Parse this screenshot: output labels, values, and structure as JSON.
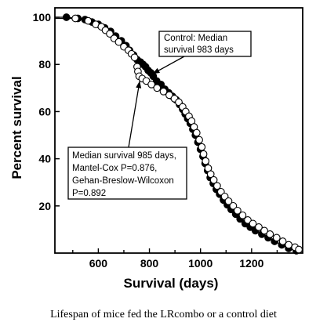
{
  "chart_data": {
    "type": "scatter",
    "xlabel": "Survival (days)",
    "ylabel": "Percent survival",
    "xlim": [
      430,
      1400
    ],
    "ylim": [
      0,
      104
    ],
    "xticks": [
      600,
      800,
      1000,
      1200
    ],
    "yticks": [
      20,
      40,
      60,
      80,
      100
    ],
    "grid": false,
    "series": [
      {
        "name": "Control",
        "marker": "filled-circle",
        "color": "#000000",
        "points": [
          [
            475,
            100
          ],
          [
            520,
            99.5
          ],
          [
            548,
            99
          ],
          [
            575,
            98
          ],
          [
            600,
            97
          ],
          [
            625,
            95.5
          ],
          [
            648,
            94
          ],
          [
            668,
            92
          ],
          [
            690,
            90
          ],
          [
            708,
            88
          ],
          [
            722,
            86
          ],
          [
            738,
            84
          ],
          [
            752,
            82
          ],
          [
            765,
            81
          ],
          [
            775,
            80
          ],
          [
            785,
            79
          ],
          [
            795,
            77.5
          ],
          [
            805,
            76.5
          ],
          [
            815,
            75
          ],
          [
            828,
            73
          ],
          [
            845,
            71.5
          ],
          [
            860,
            69.5
          ],
          [
            875,
            68
          ],
          [
            890,
            66.5
          ],
          [
            905,
            65
          ],
          [
            918,
            63
          ],
          [
            930,
            61
          ],
          [
            940,
            59
          ],
          [
            950,
            57
          ],
          [
            960,
            55
          ],
          [
            970,
            52.5
          ],
          [
            980,
            50
          ],
          [
            990,
            47
          ],
          [
            1000,
            44
          ],
          [
            1010,
            41
          ],
          [
            1018,
            38
          ],
          [
            1028,
            35
          ],
          [
            1038,
            32
          ],
          [
            1050,
            29.5
          ],
          [
            1062,
            27
          ],
          [
            1075,
            25
          ],
          [
            1090,
            22.5
          ],
          [
            1105,
            20.5
          ],
          [
            1120,
            18.5
          ],
          [
            1138,
            16.5
          ],
          [
            1155,
            14.5
          ],
          [
            1175,
            12.5
          ],
          [
            1195,
            11
          ],
          [
            1215,
            9.5
          ],
          [
            1240,
            8
          ],
          [
            1265,
            6.5
          ],
          [
            1290,
            5
          ],
          [
            1318,
            3.5
          ],
          [
            1345,
            2
          ],
          [
            1375,
            1
          ]
        ]
      },
      {
        "name": "LRcombo",
        "marker": "open-circle",
        "color": "#000000",
        "points": [
          [
            510,
            99.5
          ],
          [
            560,
            98.5
          ],
          [
            590,
            97
          ],
          [
            612,
            96
          ],
          [
            628,
            94.5
          ],
          [
            645,
            93
          ],
          [
            662,
            91
          ],
          [
            680,
            89.5
          ],
          [
            700,
            87.5
          ],
          [
            718,
            86
          ],
          [
            730,
            84.5
          ],
          [
            742,
            83
          ],
          [
            752,
            79
          ],
          [
            755,
            77
          ],
          [
            760,
            75
          ],
          [
            772,
            74
          ],
          [
            788,
            73
          ],
          [
            808,
            71.5
          ],
          [
            830,
            70
          ],
          [
            855,
            68.5
          ],
          [
            878,
            67
          ],
          [
            898,
            65.5
          ],
          [
            915,
            64
          ],
          [
            930,
            62
          ],
          [
            942,
            60
          ],
          [
            955,
            58
          ],
          [
            965,
            56
          ],
          [
            975,
            53.5
          ],
          [
            985,
            51
          ],
          [
            995,
            48
          ],
          [
            1005,
            45
          ],
          [
            1012,
            42
          ],
          [
            1020,
            39
          ],
          [
            1030,
            36
          ],
          [
            1040,
            33.5
          ],
          [
            1052,
            31
          ],
          [
            1065,
            28.5
          ],
          [
            1080,
            26
          ],
          [
            1095,
            24
          ],
          [
            1110,
            22
          ],
          [
            1128,
            20
          ],
          [
            1145,
            18
          ],
          [
            1165,
            16
          ],
          [
            1185,
            14
          ],
          [
            1205,
            12.5
          ],
          [
            1228,
            11
          ],
          [
            1250,
            9.5
          ],
          [
            1272,
            8
          ],
          [
            1298,
            6.5
          ],
          [
            1322,
            5
          ],
          [
            1345,
            3.5
          ],
          [
            1370,
            2.5
          ],
          [
            1385,
            1.5
          ]
        ]
      }
    ],
    "annotations": [
      {
        "lines": [
          "Control: Median",
          "survival 983 days"
        ],
        "arrow_to": [
          812,
          76
        ]
      },
      {
        "lines": [
          "Median survival 985 days,",
          "Mantel-Cox P=0.876,",
          "Gehan-Breslow-Wilcoxon",
          "  P=0.892"
        ],
        "arrow_to": [
          762,
          73
        ]
      }
    ]
  },
  "caption": "Lifespan of mice fed the LRcombo or a control diet"
}
